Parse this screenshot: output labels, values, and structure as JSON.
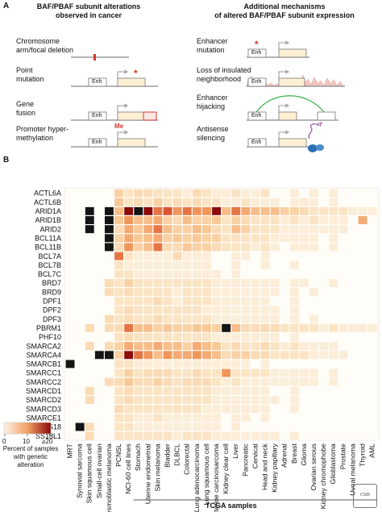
{
  "panel_a": {
    "label": "A",
    "left_title_1": "BAF/PBAF subunit alterations",
    "left_title_2": "observed in cancer",
    "right_title_1": "Additional mechanisms",
    "right_title_2": "of altered BAF/PBAF subunit expression",
    "left_items": [
      {
        "line1": "Chromosome",
        "line2": "arm/focal deletion"
      },
      {
        "line1": "Point",
        "line2": "mutation"
      },
      {
        "line1": "Gene",
        "line2": "fusion"
      },
      {
        "line1": "Promoter hyper-",
        "line2": "methylation"
      }
    ],
    "right_items": [
      {
        "line1": "Enhancer",
        "line2": "mutation"
      },
      {
        "line1": "Loss of insulated",
        "line2": "neighborhood"
      },
      {
        "line1": "Enhancer",
        "line2": "hijacking"
      },
      {
        "line1": "Antisense",
        "line2": "silencing"
      }
    ],
    "enh_label": "Enh",
    "me_label": "Me",
    "mutation_mark": "*"
  },
  "panel_b": {
    "label": "B",
    "legend": {
      "tick_0": "0",
      "tick_10": "10",
      "tick_20": "≥20",
      "caption_1": "Percent of samples",
      "caption_2": "with genetic",
      "caption_3": "alteration"
    },
    "tcga_label": "TCGA samples"
  },
  "chart_data": {
    "type": "heatmap",
    "value_unit": "percent of samples with genetic alteration",
    "color_range": [
      0,
      20
    ],
    "rows": [
      "ACTL6A",
      "ACTL6B",
      "ARID1A",
      "ARID1B",
      "ARID2",
      "BCL11A",
      "BCL11B",
      "BCL7A",
      "BCL7B",
      "BCL7C",
      "BRD7",
      "BRD9",
      "DPF1",
      "DPF2",
      "DPF3",
      "PBRM1",
      "PHF10",
      "SMARCA2",
      "SMARCA4",
      "SMARCB1",
      "SMARCC1",
      "SMARCC2",
      "SMARCD1",
      "SMARCD2",
      "SMARCD3",
      "SMARCE1",
      "SS18",
      "SS18L1"
    ],
    "columns": [
      "MRT",
      "Synovial sarcoma",
      "Skin squamous cell",
      "Small-cell ovarian",
      "Desmoblastic melanoma",
      "PCNSL",
      "NCI-60 cell lines",
      "Stomach",
      "Uterine endometrial",
      "Skin melanoma",
      "Bladder",
      "DLBCL",
      "Colorectal",
      "Lung adenocarcinoma",
      "Lung squamous cell",
      "Uterine carcinosarcoma",
      "Kidney clear cell",
      "Liver",
      "Pancreatic",
      "Cervical",
      "Head and neck",
      "Kidney papillary",
      "Adrenal",
      "Breast",
      "Glioma",
      "Ovarian serous",
      "Kidney chromophobe",
      "Glioblastoma",
      "Prostate",
      "Uveal melanoma",
      "Thyroid",
      "AML"
    ],
    "values": [
      [
        0,
        0,
        0,
        0,
        0,
        4,
        2,
        3,
        3,
        2,
        2,
        2,
        1,
        3,
        2,
        1,
        1,
        2,
        1,
        1,
        2,
        0,
        0,
        1,
        0,
        1,
        0,
        1,
        0,
        0,
        0,
        0
      ],
      [
        0,
        0,
        0,
        0,
        0,
        5,
        2,
        3,
        2,
        4,
        2,
        3,
        2,
        3,
        2,
        2,
        1,
        1,
        2,
        1,
        1,
        1,
        0,
        1,
        1,
        1,
        0,
        1,
        0,
        0,
        0,
        0
      ],
      [
        0,
        0,
        22,
        0,
        25,
        6,
        20,
        22,
        20,
        12,
        14,
        10,
        12,
        10,
        10,
        20,
        6,
        12,
        8,
        6,
        6,
        6,
        4,
        4,
        3,
        2,
        2,
        2,
        2,
        1,
        1,
        1
      ],
      [
        0,
        0,
        22,
        0,
        22,
        5,
        10,
        6,
        6,
        8,
        4,
        3,
        6,
        4,
        4,
        5,
        2,
        4,
        3,
        2,
        2,
        2,
        1,
        2,
        1,
        2,
        1,
        1,
        1,
        0,
        8,
        0
      ],
      [
        0,
        0,
        25,
        0,
        22,
        3,
        8,
        5,
        8,
        12,
        6,
        4,
        4,
        6,
        5,
        3,
        2,
        6,
        4,
        2,
        2,
        2,
        1,
        1,
        1,
        1,
        1,
        1,
        1,
        0,
        0,
        0
      ],
      [
        0,
        0,
        0,
        0,
        22,
        4,
        8,
        5,
        6,
        8,
        4,
        5,
        4,
        5,
        4,
        4,
        2,
        2,
        2,
        2,
        2,
        1,
        1,
        1,
        1,
        1,
        0,
        1,
        0,
        0,
        0,
        0
      ],
      [
        0,
        0,
        0,
        0,
        25,
        3,
        10,
        4,
        6,
        12,
        3,
        3,
        5,
        4,
        4,
        3,
        2,
        2,
        2,
        1,
        2,
        1,
        0,
        1,
        1,
        1,
        0,
        1,
        0,
        0,
        0,
        0
      ],
      [
        0,
        0,
        0,
        0,
        0,
        12,
        2,
        1,
        1,
        1,
        1,
        3,
        1,
        1,
        1,
        0,
        0,
        1,
        1,
        0,
        1,
        0,
        0,
        0,
        0,
        0,
        0,
        0,
        0,
        0,
        0,
        0
      ],
      [
        0,
        0,
        0,
        0,
        0,
        2,
        1,
        1,
        1,
        1,
        1,
        1,
        1,
        1,
        1,
        0,
        0,
        1,
        0,
        0,
        1,
        0,
        0,
        1,
        0,
        0,
        0,
        0,
        0,
        0,
        0,
        0
      ],
      [
        0,
        0,
        0,
        0,
        0,
        2,
        2,
        1,
        1,
        1,
        1,
        1,
        1,
        1,
        1,
        1,
        0,
        1,
        0,
        0,
        0,
        0,
        0,
        0,
        0,
        0,
        0,
        0,
        0,
        0,
        0,
        0
      ],
      [
        0,
        0,
        0,
        0,
        3,
        2,
        4,
        2,
        2,
        2,
        2,
        2,
        2,
        2,
        2,
        1,
        1,
        1,
        1,
        1,
        1,
        1,
        0,
        1,
        1,
        0,
        0,
        1,
        0,
        0,
        0,
        0
      ],
      [
        0,
        0,
        0,
        0,
        3,
        2,
        3,
        2,
        2,
        2,
        2,
        1,
        2,
        2,
        2,
        1,
        1,
        1,
        1,
        1,
        1,
        1,
        0,
        1,
        0,
        1,
        0,
        0,
        0,
        0,
        0,
        0
      ],
      [
        0,
        0,
        0,
        0,
        0,
        2,
        2,
        2,
        2,
        3,
        2,
        1,
        2,
        2,
        2,
        1,
        1,
        1,
        1,
        1,
        1,
        0,
        0,
        1,
        0,
        0,
        0,
        0,
        0,
        0,
        0,
        0
      ],
      [
        0,
        0,
        0,
        0,
        0,
        2,
        3,
        2,
        2,
        2,
        2,
        2,
        2,
        2,
        1,
        1,
        1,
        1,
        1,
        1,
        1,
        1,
        0,
        1,
        0,
        0,
        0,
        0,
        0,
        0,
        0,
        0
      ],
      [
        0,
        0,
        0,
        0,
        3,
        2,
        3,
        2,
        2,
        3,
        2,
        2,
        2,
        2,
        2,
        1,
        1,
        1,
        1,
        1,
        1,
        1,
        0,
        1,
        0,
        1,
        0,
        0,
        0,
        0,
        0,
        0
      ],
      [
        0,
        0,
        3,
        0,
        3,
        3,
        12,
        6,
        6,
        4,
        5,
        4,
        4,
        5,
        5,
        4,
        25,
        6,
        3,
        3,
        3,
        3,
        2,
        2,
        2,
        2,
        1,
        2,
        1,
        1,
        1,
        1
      ],
      [
        0,
        0,
        0,
        0,
        0,
        2,
        3,
        2,
        2,
        2,
        2,
        2,
        2,
        2,
        2,
        1,
        1,
        1,
        1,
        1,
        1,
        1,
        0,
        1,
        0,
        0,
        0,
        0,
        0,
        0,
        0,
        0
      ],
      [
        0,
        0,
        3,
        0,
        3,
        4,
        8,
        6,
        6,
        8,
        6,
        6,
        4,
        8,
        6,
        5,
        2,
        3,
        2,
        2,
        3,
        2,
        1,
        2,
        1,
        1,
        1,
        1,
        0,
        0,
        0,
        0
      ],
      [
        0,
        0,
        0,
        25,
        25,
        4,
        20,
        12,
        10,
        6,
        10,
        8,
        8,
        10,
        8,
        6,
        3,
        4,
        4,
        3,
        3,
        2,
        2,
        2,
        2,
        1,
        1,
        1,
        1,
        0,
        0,
        0
      ],
      [
        25,
        0,
        0,
        0,
        0,
        2,
        2,
        1,
        1,
        1,
        1,
        1,
        1,
        1,
        1,
        1,
        1,
        1,
        1,
        0,
        1,
        0,
        0,
        0,
        0,
        0,
        0,
        0,
        0,
        0,
        0,
        0
      ],
      [
        0,
        0,
        0,
        0,
        0,
        2,
        4,
        2,
        3,
        3,
        3,
        2,
        2,
        3,
        2,
        2,
        10,
        2,
        2,
        2,
        2,
        1,
        1,
        1,
        1,
        1,
        0,
        1,
        0,
        0,
        0,
        0
      ],
      [
        0,
        0,
        0,
        0,
        3,
        3,
        5,
        3,
        3,
        4,
        3,
        2,
        3,
        3,
        3,
        2,
        1,
        2,
        1,
        1,
        1,
        1,
        1,
        1,
        1,
        1,
        0,
        1,
        0,
        0,
        0,
        0
      ],
      [
        0,
        0,
        3,
        0,
        0,
        2,
        3,
        2,
        2,
        2,
        2,
        2,
        2,
        2,
        2,
        1,
        1,
        1,
        1,
        1,
        1,
        0,
        0,
        1,
        0,
        0,
        0,
        0,
        0,
        0,
        0,
        0
      ],
      [
        0,
        0,
        3,
        0,
        0,
        2,
        3,
        2,
        2,
        2,
        2,
        2,
        2,
        2,
        2,
        1,
        1,
        1,
        1,
        1,
        1,
        1,
        0,
        1,
        0,
        0,
        0,
        0,
        0,
        0,
        0,
        0
      ],
      [
        0,
        0,
        0,
        0,
        0,
        3,
        2,
        2,
        2,
        2,
        2,
        2,
        2,
        2,
        1,
        1,
        1,
        1,
        1,
        1,
        1,
        0,
        0,
        1,
        0,
        0,
        0,
        0,
        0,
        0,
        0,
        0
      ],
      [
        0,
        0,
        0,
        0,
        0,
        2,
        2,
        1,
        1,
        2,
        1,
        1,
        1,
        1,
        1,
        1,
        0,
        1,
        1,
        0,
        1,
        0,
        0,
        0,
        0,
        0,
        0,
        0,
        0,
        0,
        0,
        0
      ],
      [
        0,
        25,
        3,
        0,
        0,
        2,
        2,
        1,
        1,
        1,
        1,
        1,
        1,
        1,
        1,
        1,
        0,
        1,
        0,
        0,
        0,
        0,
        0,
        0,
        0,
        0,
        0,
        0,
        0,
        0,
        0,
        0
      ],
      [
        0,
        0,
        3,
        0,
        0,
        2,
        2,
        2,
        2,
        2,
        2,
        1,
        2,
        2,
        2,
        1,
        1,
        1,
        1,
        1,
        1,
        1,
        0,
        1,
        0,
        0,
        0,
        0,
        0,
        0,
        0,
        0
      ]
    ],
    "tcga_columns": [
      "Stomach",
      "AML"
    ]
  }
}
